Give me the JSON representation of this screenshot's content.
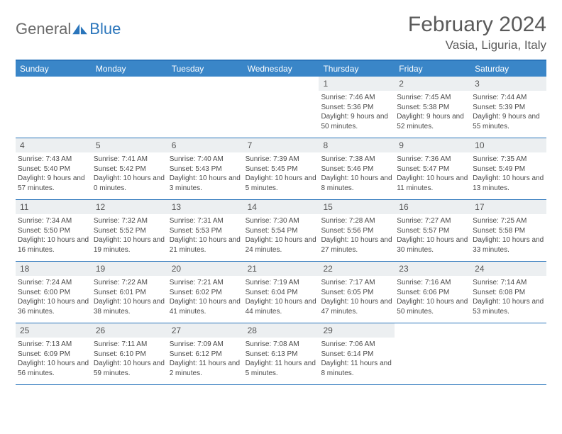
{
  "logo": {
    "part1": "General",
    "part2": "Blue"
  },
  "title": "February 2024",
  "location": "Vasia, Liguria, Italy",
  "colors": {
    "brand_blue": "#2a75bb",
    "header_bar": "#3a86c8",
    "band_grey": "#eceff1",
    "text_grey": "#5a5a5a",
    "body_text": "#4a4a4a"
  },
  "day_names": [
    "Sunday",
    "Monday",
    "Tuesday",
    "Wednesday",
    "Thursday",
    "Friday",
    "Saturday"
  ],
  "weeks": [
    [
      {
        "empty": true
      },
      {
        "empty": true
      },
      {
        "empty": true
      },
      {
        "empty": true
      },
      {
        "num": "1",
        "sunrise": "Sunrise: 7:46 AM",
        "sunset": "Sunset: 5:36 PM",
        "daylight": "Daylight: 9 hours and 50 minutes."
      },
      {
        "num": "2",
        "sunrise": "Sunrise: 7:45 AM",
        "sunset": "Sunset: 5:38 PM",
        "daylight": "Daylight: 9 hours and 52 minutes."
      },
      {
        "num": "3",
        "sunrise": "Sunrise: 7:44 AM",
        "sunset": "Sunset: 5:39 PM",
        "daylight": "Daylight: 9 hours and 55 minutes."
      }
    ],
    [
      {
        "num": "4",
        "sunrise": "Sunrise: 7:43 AM",
        "sunset": "Sunset: 5:40 PM",
        "daylight": "Daylight: 9 hours and 57 minutes."
      },
      {
        "num": "5",
        "sunrise": "Sunrise: 7:41 AM",
        "sunset": "Sunset: 5:42 PM",
        "daylight": "Daylight: 10 hours and 0 minutes."
      },
      {
        "num": "6",
        "sunrise": "Sunrise: 7:40 AM",
        "sunset": "Sunset: 5:43 PM",
        "daylight": "Daylight: 10 hours and 3 minutes."
      },
      {
        "num": "7",
        "sunrise": "Sunrise: 7:39 AM",
        "sunset": "Sunset: 5:45 PM",
        "daylight": "Daylight: 10 hours and 5 minutes."
      },
      {
        "num": "8",
        "sunrise": "Sunrise: 7:38 AM",
        "sunset": "Sunset: 5:46 PM",
        "daylight": "Daylight: 10 hours and 8 minutes."
      },
      {
        "num": "9",
        "sunrise": "Sunrise: 7:36 AM",
        "sunset": "Sunset: 5:47 PM",
        "daylight": "Daylight: 10 hours and 11 minutes."
      },
      {
        "num": "10",
        "sunrise": "Sunrise: 7:35 AM",
        "sunset": "Sunset: 5:49 PM",
        "daylight": "Daylight: 10 hours and 13 minutes."
      }
    ],
    [
      {
        "num": "11",
        "sunrise": "Sunrise: 7:34 AM",
        "sunset": "Sunset: 5:50 PM",
        "daylight": "Daylight: 10 hours and 16 minutes."
      },
      {
        "num": "12",
        "sunrise": "Sunrise: 7:32 AM",
        "sunset": "Sunset: 5:52 PM",
        "daylight": "Daylight: 10 hours and 19 minutes."
      },
      {
        "num": "13",
        "sunrise": "Sunrise: 7:31 AM",
        "sunset": "Sunset: 5:53 PM",
        "daylight": "Daylight: 10 hours and 21 minutes."
      },
      {
        "num": "14",
        "sunrise": "Sunrise: 7:30 AM",
        "sunset": "Sunset: 5:54 PM",
        "daylight": "Daylight: 10 hours and 24 minutes."
      },
      {
        "num": "15",
        "sunrise": "Sunrise: 7:28 AM",
        "sunset": "Sunset: 5:56 PM",
        "daylight": "Daylight: 10 hours and 27 minutes."
      },
      {
        "num": "16",
        "sunrise": "Sunrise: 7:27 AM",
        "sunset": "Sunset: 5:57 PM",
        "daylight": "Daylight: 10 hours and 30 minutes."
      },
      {
        "num": "17",
        "sunrise": "Sunrise: 7:25 AM",
        "sunset": "Sunset: 5:58 PM",
        "daylight": "Daylight: 10 hours and 33 minutes."
      }
    ],
    [
      {
        "num": "18",
        "sunrise": "Sunrise: 7:24 AM",
        "sunset": "Sunset: 6:00 PM",
        "daylight": "Daylight: 10 hours and 36 minutes."
      },
      {
        "num": "19",
        "sunrise": "Sunrise: 7:22 AM",
        "sunset": "Sunset: 6:01 PM",
        "daylight": "Daylight: 10 hours and 38 minutes."
      },
      {
        "num": "20",
        "sunrise": "Sunrise: 7:21 AM",
        "sunset": "Sunset: 6:02 PM",
        "daylight": "Daylight: 10 hours and 41 minutes."
      },
      {
        "num": "21",
        "sunrise": "Sunrise: 7:19 AM",
        "sunset": "Sunset: 6:04 PM",
        "daylight": "Daylight: 10 hours and 44 minutes."
      },
      {
        "num": "22",
        "sunrise": "Sunrise: 7:17 AM",
        "sunset": "Sunset: 6:05 PM",
        "daylight": "Daylight: 10 hours and 47 minutes."
      },
      {
        "num": "23",
        "sunrise": "Sunrise: 7:16 AM",
        "sunset": "Sunset: 6:06 PM",
        "daylight": "Daylight: 10 hours and 50 minutes."
      },
      {
        "num": "24",
        "sunrise": "Sunrise: 7:14 AM",
        "sunset": "Sunset: 6:08 PM",
        "daylight": "Daylight: 10 hours and 53 minutes."
      }
    ],
    [
      {
        "num": "25",
        "sunrise": "Sunrise: 7:13 AM",
        "sunset": "Sunset: 6:09 PM",
        "daylight": "Daylight: 10 hours and 56 minutes."
      },
      {
        "num": "26",
        "sunrise": "Sunrise: 7:11 AM",
        "sunset": "Sunset: 6:10 PM",
        "daylight": "Daylight: 10 hours and 59 minutes."
      },
      {
        "num": "27",
        "sunrise": "Sunrise: 7:09 AM",
        "sunset": "Sunset: 6:12 PM",
        "daylight": "Daylight: 11 hours and 2 minutes."
      },
      {
        "num": "28",
        "sunrise": "Sunrise: 7:08 AM",
        "sunset": "Sunset: 6:13 PM",
        "daylight": "Daylight: 11 hours and 5 minutes."
      },
      {
        "num": "29",
        "sunrise": "Sunrise: 7:06 AM",
        "sunset": "Sunset: 6:14 PM",
        "daylight": "Daylight: 11 hours and 8 minutes."
      },
      {
        "empty": true
      },
      {
        "empty": true
      }
    ]
  ]
}
